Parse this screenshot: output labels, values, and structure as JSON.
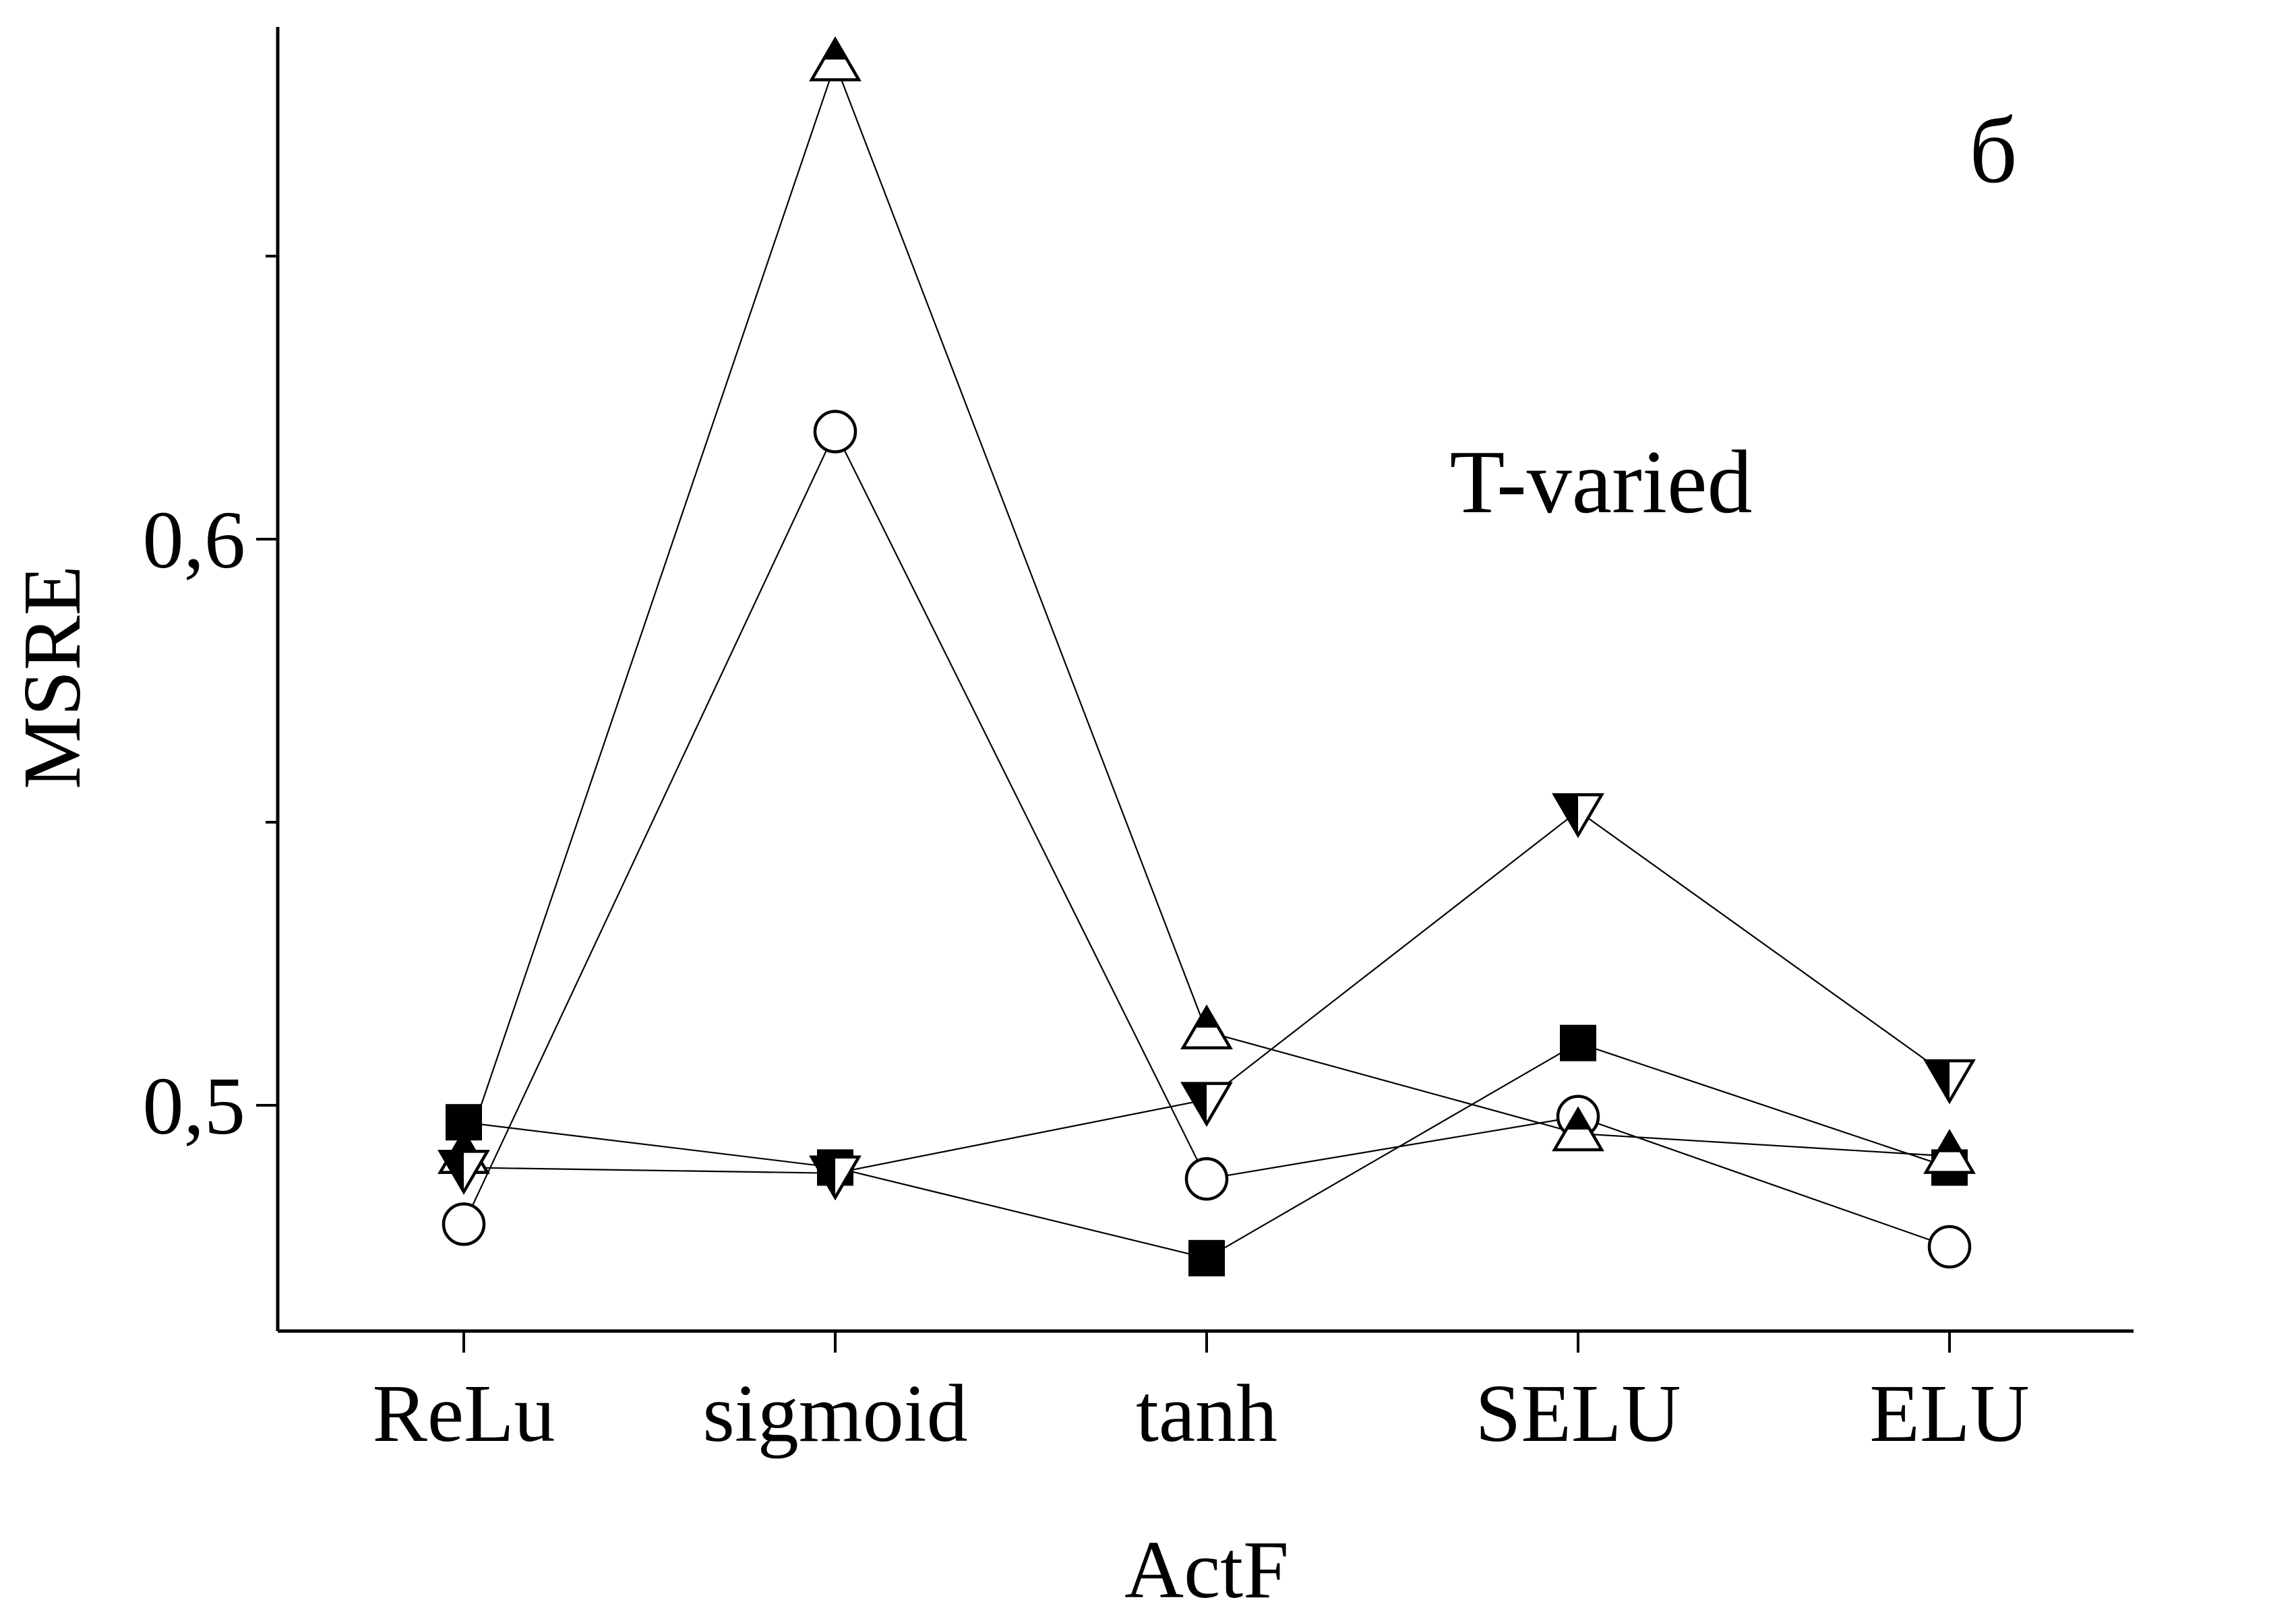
{
  "chart_data": {
    "type": "line",
    "categories": [
      "ReLu",
      "sigmoid",
      "tanh",
      "SELU",
      "ELU"
    ],
    "xlabel": "ActF",
    "ylabel": "MSRE",
    "ylim": [
      0.46,
      0.69
    ],
    "yticks": [
      {
        "value": 0.5,
        "label": "0,5"
      },
      {
        "value": 0.6,
        "label": "0,6"
      }
    ],
    "yminor_ticks": [
      0.55,
      0.65
    ],
    "grid": false,
    "legend": "none",
    "annotations": [
      {
        "text": "б",
        "role": "panel-label"
      },
      {
        "text": "T-varied",
        "role": "label"
      }
    ],
    "series": [
      {
        "marker": "filled-square",
        "values": [
          0.497,
          0.489,
          0.473,
          0.511,
          0.489
        ]
      },
      {
        "marker": "open-circle",
        "values": [
          0.479,
          0.619,
          0.487,
          0.498,
          0.475
        ]
      },
      {
        "marker": "half-filled-triangle-up",
        "values": [
          0.491,
          0.684,
          0.513,
          0.495,
          0.491
        ]
      },
      {
        "marker": "half-filled-triangle-down",
        "values": [
          0.489,
          0.488,
          0.501,
          0.552,
          0.505
        ]
      }
    ]
  }
}
